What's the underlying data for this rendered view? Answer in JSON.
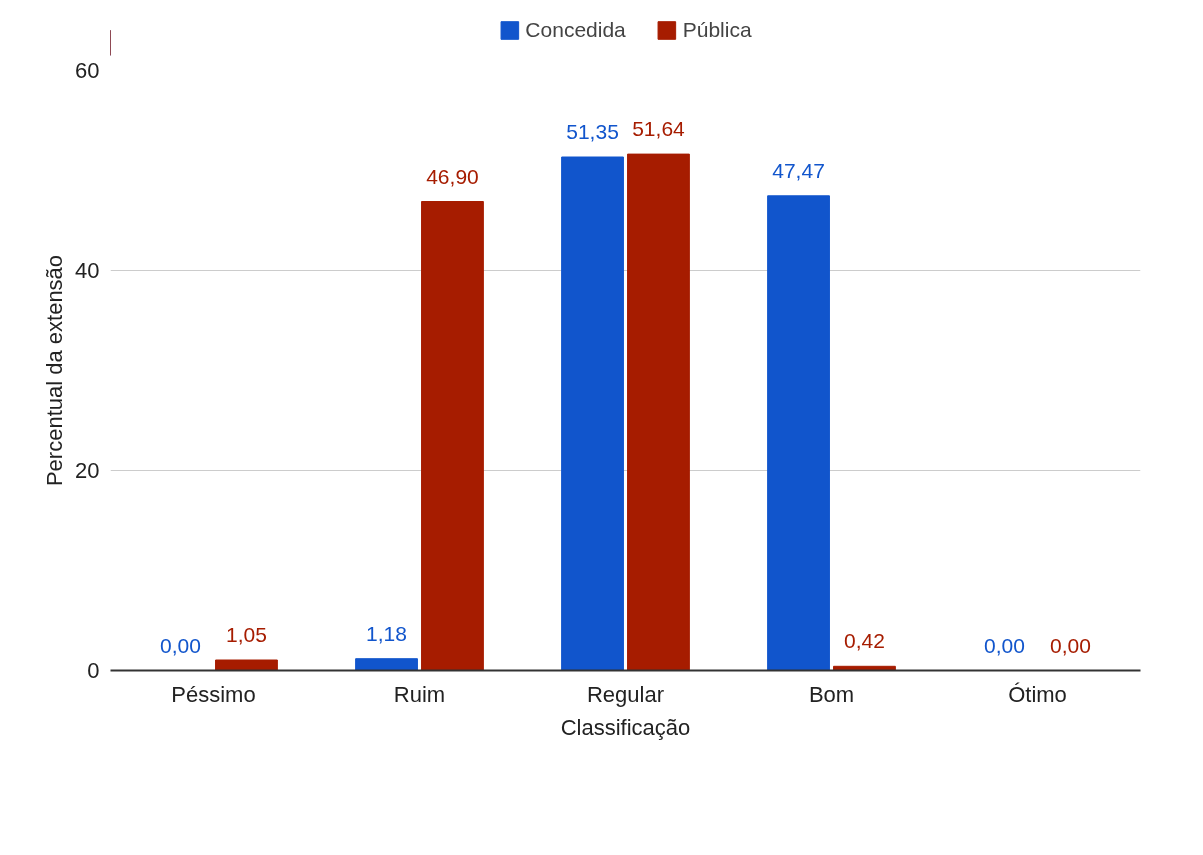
{
  "chart_data": {
    "type": "bar",
    "xlabel": "Classificação",
    "ylabel": "Percentual da extensão",
    "categories": [
      "Péssimo",
      "Ruim",
      "Regular",
      "Bom",
      "Ótimo"
    ],
    "series": [
      {
        "name": "Concedida",
        "color": "#1155cc",
        "values": [
          0,
          1.18,
          51.35,
          47.47,
          0
        ],
        "value_labels": [
          "0,00",
          "1,18",
          "51,35",
          "47,47",
          "0,00"
        ]
      },
      {
        "name": "Pública",
        "color": "#a61c00",
        "values": [
          1.05,
          46.9,
          51.64,
          0.42,
          0
        ],
        "value_labels": [
          "1,05",
          "46,90",
          "51,64",
          "0,42",
          "0,00"
        ]
      }
    ],
    "ylim": [
      0,
      60
    ],
    "yticks": [
      0,
      20,
      40,
      60
    ],
    "grid": "y",
    "legend": "top"
  }
}
